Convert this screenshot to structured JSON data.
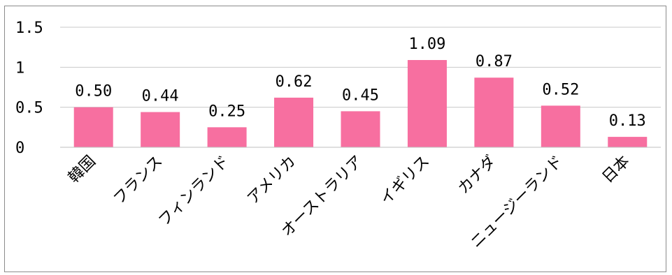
{
  "chart_data": {
    "type": "bar",
    "categories": [
      "韓国",
      "フランス",
      "フィンランド",
      "アメリカ",
      "オーストラリア",
      "イギリス",
      "カナダ",
      "ニュージーランド",
      "日本"
    ],
    "values": [
      0.5,
      0.44,
      0.25,
      0.62,
      0.45,
      1.09,
      0.87,
      0.52,
      0.13
    ],
    "data_labels": [
      "0.50",
      "0.44",
      "0.25",
      "0.62",
      "0.45",
      "1.09",
      "0.87",
      "0.52",
      "0.13"
    ],
    "y_ticks": [
      0,
      0.5,
      1,
      1.5
    ],
    "y_tick_labels": [
      "0",
      "0.5",
      "1",
      "1.5"
    ],
    "ylim": [
      0,
      1.5
    ],
    "grid": true,
    "bar_color": "#f76fa0",
    "grid_color": "#c8c8c8"
  }
}
